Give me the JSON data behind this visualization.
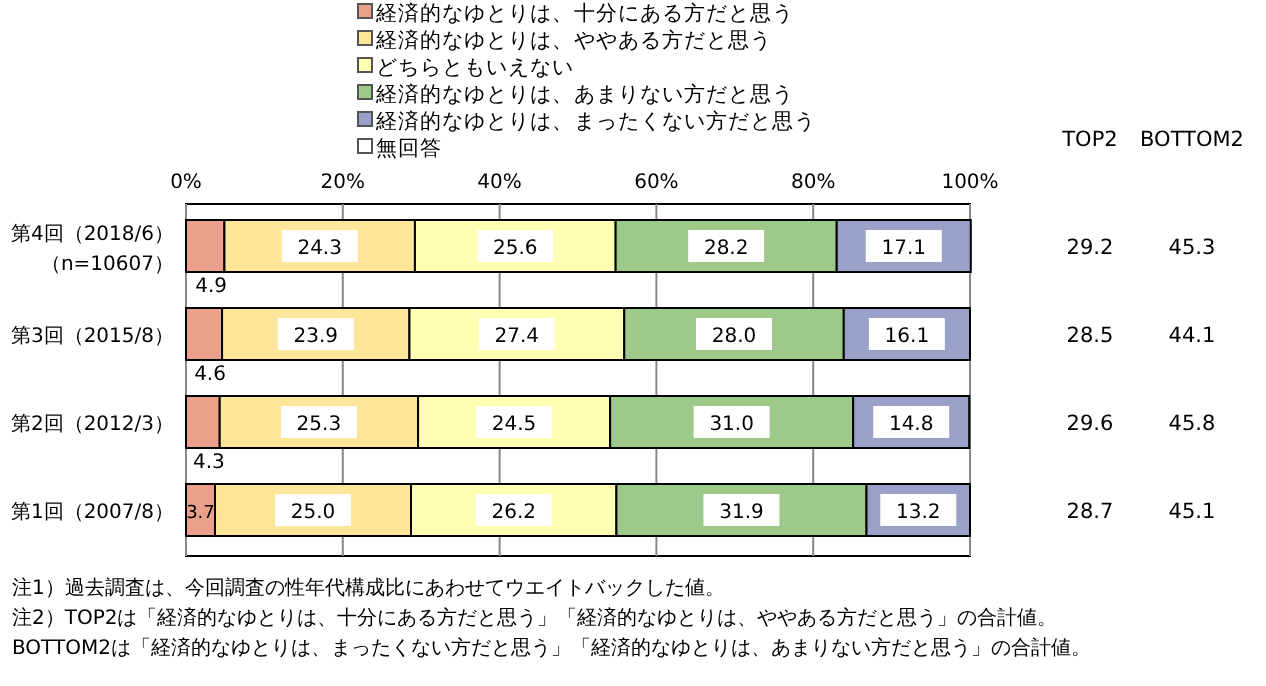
{
  "chart_data": [
    {
      "type": "bar",
      "orientation": "horizontal",
      "stacked": true,
      "legend": "top",
      "grid": "x",
      "categories": [
        "第4回（2018/6）（n=10607）",
        "第3回（2015/8）",
        "第2回（2012/3）",
        "第1回（2007/8）"
      ],
      "xlim": [
        0,
        100
      ],
      "xticks": [
        {
          "value": 0,
          "label": "0%"
        },
        {
          "value": 20,
          "label": "20%"
        },
        {
          "value": 40,
          "label": "40%"
        },
        {
          "value": 60,
          "label": "60%"
        },
        {
          "value": 80,
          "label": "80%"
        },
        {
          "value": 100,
          "label": "100%"
        }
      ],
      "series": [
        {
          "name": "経済的なゆとりは、十分にある方だと思う",
          "color": "#eba08c",
          "values": [
            4.9,
            4.6,
            4.3,
            3.7
          ],
          "value_labels": [
            "4.9",
            "4.6",
            "4.3",
            "3.7"
          ]
        },
        {
          "name": "経済的なゆとりは、ややある方だと思う",
          "color": "#fde59a",
          "values": [
            24.3,
            23.9,
            25.3,
            25.0
          ],
          "value_labels": [
            "24.3",
            "23.9",
            "25.3",
            "25.0"
          ]
        },
        {
          "name": "どちらともいえない",
          "color": "#ffffb4",
          "values": [
            25.6,
            27.4,
            24.5,
            26.2
          ],
          "value_labels": [
            "25.6",
            "27.4",
            "24.5",
            "26.2"
          ]
        },
        {
          "name": "経済的なゆとりは、あまりない方だと思う",
          "color": "#9dc98b",
          "values": [
            28.2,
            28.0,
            31.0,
            31.9
          ],
          "value_labels": [
            "28.2",
            "28.0",
            "31.0",
            "31.9"
          ]
        },
        {
          "name": "経済的なゆとりは、まったくない方だと思う",
          "color": "#9aa1c8",
          "values": [
            17.1,
            16.1,
            14.8,
            13.2
          ],
          "value_labels": [
            "17.1",
            "16.1",
            "14.8",
            "13.2"
          ]
        },
        {
          "name": "無回答",
          "color": "#ffffff",
          "values": [
            null,
            null,
            null,
            null
          ]
        }
      ],
      "annotations": [
        "注1）過去調査は、今回調査の性年代構成比にあわせてウエイトバックした値。",
        "注2）TOP2は「経済的なゆとりは、十分にある方だと思う」「経済的なゆとりは、ややある方だと思う」の合計値。",
        "BOTTOM2は「経済的なゆとりは、まったくない方だと思う」「経済的なゆとりは、あまりない方だと思う」の合計値。"
      ]
    },
    {
      "type": "other",
      "annotations": [
        "TOP2",
        "BOTTOM2",
        "29.2",
        "45.3",
        "28.5",
        "44.1",
        "29.6",
        "45.8",
        "28.7",
        "45.1"
      ]
    }
  ]
}
